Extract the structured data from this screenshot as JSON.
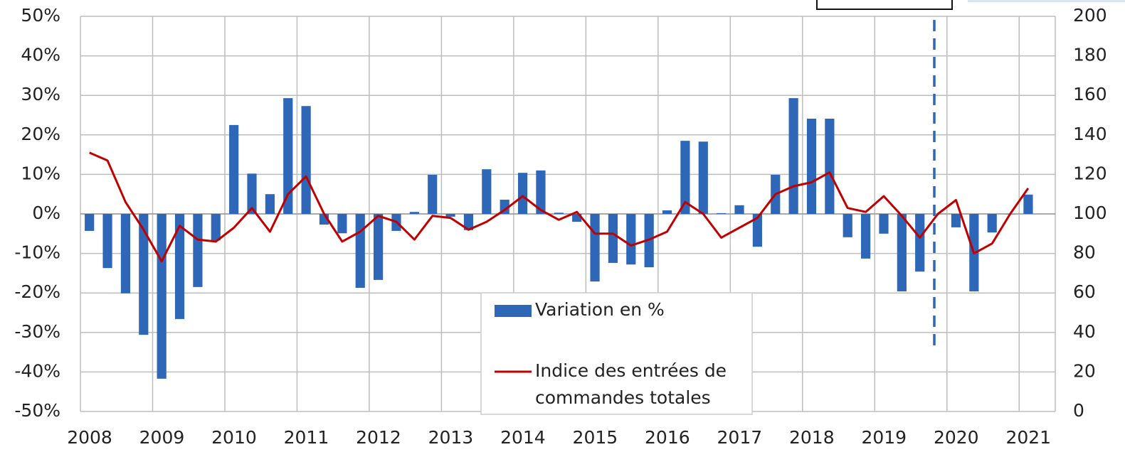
{
  "chart_data": {
    "type": "bar-line",
    "x": [
      2008.125,
      2008.375,
      2008.625,
      2008.875,
      2009.125,
      2009.375,
      2009.625,
      2009.875,
      2010.125,
      2010.375,
      2010.625,
      2010.875,
      2011.125,
      2011.375,
      2011.625,
      2011.875,
      2012.125,
      2012.375,
      2012.625,
      2012.875,
      2013.125,
      2013.375,
      2013.625,
      2013.875,
      2014.125,
      2014.375,
      2014.625,
      2014.875,
      2015.125,
      2015.375,
      2015.625,
      2015.875,
      2016.125,
      2016.375,
      2016.625,
      2016.875,
      2017.125,
      2017.375,
      2017.625,
      2017.875,
      2018.125,
      2018.375,
      2018.625,
      2018.875,
      2019.125,
      2019.375,
      2019.625,
      2019.875,
      2020.125,
      2020.375,
      2020.625,
      2020.875,
      2021.125
    ],
    "series": [
      {
        "name": "Variation en %",
        "color": "#2e67b8",
        "kind": "bar",
        "values": [
          -4.3,
          -13.7,
          -20.1,
          -30.6,
          -41.7,
          -26.6,
          -18.5,
          -6.7,
          22.5,
          10.2,
          5,
          29.3,
          27.3,
          -2.7,
          -4.9,
          -18.7,
          -16.7,
          -4.3,
          0.5,
          9.9,
          -0.7,
          -4.1,
          11.3,
          3.6,
          10.4,
          11,
          0.3,
          -2,
          -17.1,
          -12.4,
          -12.8,
          -13.5,
          0.9,
          18.5,
          18.3,
          0.2,
          2.2,
          -8.3,
          9.9,
          29.3,
          24.1,
          24.1,
          -5.9,
          -11.3,
          -5,
          -19.6,
          -14.6,
          null,
          -3.4,
          -19.6,
          -4.7,
          0,
          4.9
        ]
      },
      {
        "name": "Indice des entrées de commandes totales",
        "color": "#c00000",
        "kind": "line",
        "axis": "y2",
        "values": [
          131,
          127,
          106,
          92,
          76,
          94,
          87,
          86,
          93,
          103,
          91,
          110,
          119,
          100,
          86,
          91,
          99,
          96,
          87,
          99,
          98,
          92,
          96,
          102,
          109,
          102,
          97,
          101,
          90,
          90,
          84,
          87,
          91,
          106,
          100,
          88,
          93,
          98,
          110,
          114,
          116,
          121,
          103,
          101,
          109,
          99,
          88,
          100,
          107,
          80,
          85,
          100,
          113
        ]
      }
    ],
    "xlim": [
      2008,
      2021.5
    ],
    "xticks": [
      2008,
      2009,
      2010,
      2011,
      2012,
      2013,
      2014,
      2015,
      2016,
      2017,
      2018,
      2019,
      2020,
      2021
    ],
    "ylim": [
      -50,
      50
    ],
    "yticks": [
      {
        "value": -50,
        "label": "-50%"
      },
      {
        "value": -40,
        "label": "-40%"
      },
      {
        "value": -30,
        "label": "-30%"
      },
      {
        "value": -20,
        "label": "-20%"
      },
      {
        "value": -10,
        "label": "-10%"
      },
      {
        "value": 0,
        "label": "0%"
      },
      {
        "value": 10,
        "label": "10%"
      },
      {
        "value": 20,
        "label": "20%"
      },
      {
        "value": 30,
        "label": "30%"
      },
      {
        "value": 40,
        "label": "40%"
      },
      {
        "value": 50,
        "label": "50%"
      }
    ],
    "y2lim": [
      0,
      200
    ],
    "y2ticks": [
      0,
      20,
      40,
      60,
      80,
      100,
      120,
      140,
      160,
      180,
      200
    ],
    "grid": true
  }
}
